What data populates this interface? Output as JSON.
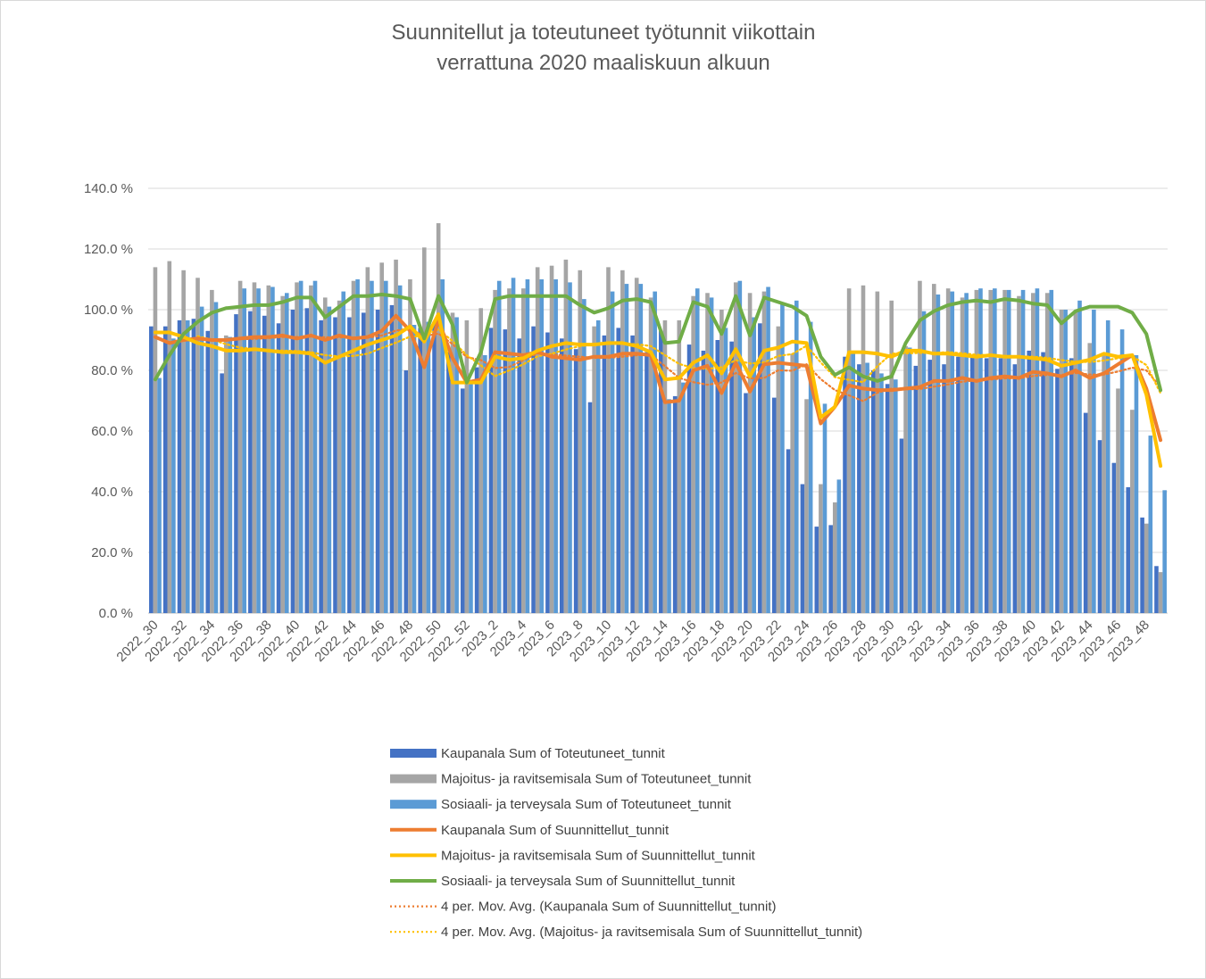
{
  "chart_data": {
    "type": "bar",
    "title": [
      "Suunnitellut ja toteutuneet työtunnit viikottain",
      "verrattuna 2020 maaliskuun alkuun"
    ],
    "ylim": [
      0,
      140
    ],
    "y_ticks": [
      "0.0 %",
      "20.0 %",
      "40.0 %",
      "60.0 %",
      "80.0 %",
      "100.0 %",
      "120.0 %",
      "140.0 %"
    ],
    "grid": true,
    "legend_position": "bottom",
    "categories": [
      "2022_30",
      "2022_31",
      "2022_32",
      "2022_33",
      "2022_34",
      "2022_35",
      "2022_36",
      "2022_37",
      "2022_38",
      "2022_39",
      "2022_40",
      "2022_41",
      "2022_42",
      "2022_43",
      "2022_44",
      "2022_45",
      "2022_46",
      "2022_47",
      "2022_48",
      "2022_49",
      "2022_50",
      "2022_51",
      "2022_52",
      "2023_1",
      "2023_2",
      "2023_3",
      "2023_4",
      "2023_5",
      "2023_6",
      "2023_7",
      "2023_8",
      "2023_9",
      "2023_10",
      "2023_11",
      "2023_12",
      "2023_13",
      "2023_14",
      "2023_15",
      "2023_16",
      "2023_17",
      "2023_18",
      "2023_19",
      "2023_20",
      "2023_21",
      "2023_22",
      "2023_23",
      "2023_24",
      "2023_25",
      "2023_26",
      "2023_27",
      "2023_28",
      "2023_29",
      "2023_30",
      "2023_31",
      "2023_32",
      "2023_33",
      "2023_34",
      "2023_35",
      "2023_36",
      "2023_37",
      "2023_38",
      "2023_39",
      "2023_40",
      "2023_41",
      "2023_42",
      "2023_43",
      "2023_44",
      "2023_45",
      "2023_46",
      "2023_47",
      "2023_48",
      "2023_49"
    ],
    "x_tick_labels": [
      "2022_30",
      "2022_32",
      "2022_34",
      "2022_36",
      "2022_38",
      "2022_40",
      "2022_42",
      "2022_44",
      "2022_46",
      "2022_48",
      "2022_50",
      "2022_52",
      "2023_2",
      "2023_4",
      "2023_6",
      "2023_8",
      "2023_10",
      "2023_12",
      "2023_14",
      "2023_16",
      "2023_18",
      "2023_20",
      "2023_22",
      "2023_24",
      "2023_26",
      "2023_28",
      "2023_30",
      "2023_32",
      "2023_34",
      "2023_36",
      "2023_38",
      "2023_40",
      "2023_42",
      "2023_44",
      "2023_46",
      "2023_48"
    ],
    "series": [
      {
        "name": "Kaupanala Sum of Toteutuneet_tunnit",
        "kind": "bar",
        "color": "#4472C4",
        "values": [
          94.5,
          94.5,
          96.5,
          97.0,
          93.0,
          79.0,
          98.5,
          99.5,
          98.0,
          95.5,
          100.0,
          100.5,
          96.5,
          97.5,
          97.5,
          99.0,
          100.0,
          101.5,
          80.0,
          94.0,
          96.0,
          86.0,
          74.0,
          81.0,
          94.0,
          93.5,
          90.5,
          94.5,
          92.5,
          90.5,
          87.0,
          69.5,
          91.5,
          94.0,
          91.5,
          86.0,
          93.0,
          71.5,
          88.5,
          86.5,
          90.0,
          89.5,
          72.5,
          95.5,
          71.0,
          54.0,
          42.5,
          28.5,
          29.0,
          84.5,
          82.0,
          80.0,
          75.5,
          57.5,
          81.5,
          83.5,
          82.0,
          84.5,
          85.0,
          84.0,
          84.0,
          82.0,
          86.5,
          86.0,
          80.5,
          84.0,
          66.0,
          57.0,
          49.5,
          41.5,
          31.5,
          15.5
        ]
      },
      {
        "name": "Majoitus- ja ravitsemisala Sum of Toteutuneet_tunnit",
        "kind": "bar",
        "color": "#A5A5A5",
        "values": [
          114.0,
          116.0,
          113.0,
          110.5,
          106.5,
          91.5,
          109.5,
          109.0,
          108.0,
          104.5,
          109.0,
          108.0,
          104.0,
          103.0,
          109.5,
          114.0,
          115.5,
          116.5,
          110.0,
          120.5,
          128.5,
          99.0,
          96.5,
          100.5,
          106.5,
          107.0,
          107.0,
          114.0,
          114.5,
          116.5,
          113.0,
          94.5,
          114.0,
          113.0,
          110.5,
          104.0,
          96.5,
          96.5,
          104.5,
          105.5,
          100.0,
          109.0,
          105.5,
          106.0,
          94.5,
          85.5,
          70.5,
          42.5,
          36.5,
          107.0,
          108.0,
          106.0,
          103.0,
          88.0,
          109.5,
          108.5,
          107.0,
          104.0,
          106.5,
          106.5,
          106.5,
          104.5,
          105.5,
          105.5,
          100.0,
          99.5,
          89.0,
          85.5,
          74.0,
          67.0,
          29.5,
          13.5
        ]
      },
      {
        "name": "Sosiaali- ja terveysala Sum of Toteutuneet_tunnit",
        "kind": "bar",
        "color": "#5B9BD5",
        "values": [
          77.5,
          90.5,
          96.5,
          101.0,
          102.5,
          91.0,
          107.0,
          107.0,
          107.5,
          105.5,
          109.5,
          109.5,
          101.0,
          106.0,
          110.0,
          109.5,
          109.5,
          108.0,
          95.0,
          96.0,
          110.0,
          97.5,
          76.0,
          85.0,
          109.5,
          110.5,
          110.0,
          110.0,
          110.0,
          109.0,
          103.5,
          96.5,
          106.0,
          108.5,
          108.5,
          106.0,
          70.5,
          76.0,
          107.0,
          104.0,
          94.0,
          109.5,
          97.5,
          107.5,
          102.0,
          103.0,
          96.0,
          69.0,
          44.0,
          86.0,
          82.5,
          79.0,
          77.0,
          87.5,
          99.5,
          105.0,
          106.0,
          105.5,
          107.0,
          107.0,
          106.5,
          106.5,
          107.0,
          106.5,
          100.0,
          103.0,
          100.0,
          96.5,
          93.5,
          85.0,
          58.5,
          40.5
        ]
      },
      {
        "name": "Kaupanala Sum of Suunnittellut_tunnit",
        "kind": "line",
        "color": "#ED7D31",
        "values": [
          91.0,
          89.0,
          90.0,
          90.5,
          90.0,
          90.0,
          90.5,
          91.0,
          91.0,
          91.5,
          90.5,
          91.5,
          90.0,
          91.5,
          90.5,
          91.0,
          93.0,
          98.0,
          93.0,
          81.0,
          96.5,
          84.0,
          76.0,
          77.0,
          86.0,
          85.5,
          85.0,
          86.0,
          84.5,
          84.0,
          83.5,
          84.5,
          84.5,
          85.5,
          85.5,
          85.0,
          69.5,
          70.0,
          80.0,
          81.5,
          72.5,
          82.5,
          73.0,
          82.0,
          82.5,
          82.0,
          81.5,
          62.5,
          68.0,
          75.0,
          74.0,
          73.5,
          73.5,
          74.0,
          74.5,
          76.5,
          76.5,
          77.5,
          76.5,
          77.5,
          78.0,
          77.5,
          79.5,
          79.0,
          78.0,
          80.0,
          77.5,
          79.0,
          82.0,
          85.0,
          74.0,
          57.0
        ]
      },
      {
        "name": "Majoitus- ja ravitsemisala Sum of Suunnittellut_tunnit",
        "kind": "line",
        "color": "#FFC000",
        "values": [
          92.5,
          92.5,
          91.0,
          89.0,
          88.0,
          86.5,
          86.5,
          87.0,
          86.5,
          86.0,
          86.0,
          85.5,
          82.5,
          84.5,
          86.5,
          88.5,
          90.0,
          91.5,
          94.5,
          89.5,
          98.5,
          76.0,
          76.0,
          76.0,
          84.5,
          83.5,
          84.0,
          86.5,
          88.0,
          89.0,
          88.5,
          88.5,
          89.0,
          89.0,
          88.0,
          86.0,
          77.0,
          77.5,
          82.5,
          85.0,
          79.0,
          87.0,
          78.0,
          86.5,
          87.5,
          89.5,
          89.0,
          64.5,
          68.0,
          86.0,
          86.0,
          85.5,
          84.5,
          86.5,
          86.5,
          85.5,
          85.5,
          85.0,
          84.5,
          85.0,
          84.5,
          84.5,
          84.0,
          83.5,
          81.5,
          82.5,
          83.5,
          85.5,
          84.5,
          85.0,
          72.0,
          48.5
        ]
      },
      {
        "name": "Sosiaali- ja terveysala Sum of Suunnittellut_tunnit",
        "kind": "line",
        "color": "#70AD47",
        "values": [
          77.0,
          85.0,
          92.0,
          96.0,
          99.0,
          100.5,
          101.0,
          101.5,
          101.5,
          102.5,
          104.0,
          104.0,
          97.5,
          101.0,
          104.5,
          104.5,
          105.0,
          104.5,
          103.5,
          90.5,
          104.5,
          95.0,
          76.0,
          86.0,
          103.5,
          104.5,
          104.5,
          104.5,
          104.5,
          104.5,
          101.5,
          99.0,
          100.5,
          103.0,
          103.5,
          102.5,
          89.0,
          89.5,
          102.5,
          101.0,
          92.0,
          104.5,
          91.5,
          104.0,
          102.5,
          101.0,
          98.0,
          84.5,
          78.5,
          81.0,
          78.0,
          76.5,
          78.0,
          89.0,
          96.5,
          99.5,
          101.5,
          102.5,
          103.0,
          102.5,
          103.5,
          103.0,
          102.0,
          101.5,
          95.5,
          99.5,
          101.0,
          101.0,
          101.0,
          99.0,
          92.0,
          73.5
        ]
      },
      {
        "name": "4 per. Mov. Avg. (Kaupanala Sum of Suunnittellut_tunnit)",
        "kind": "dotted",
        "color": "#ED7D31"
      },
      {
        "name": "4 per. Mov. Avg. (Majoitus- ja ravitsemisala Sum of Suunnittellut_tunnit)",
        "kind": "dotted",
        "color": "#FFC000"
      }
    ]
  }
}
